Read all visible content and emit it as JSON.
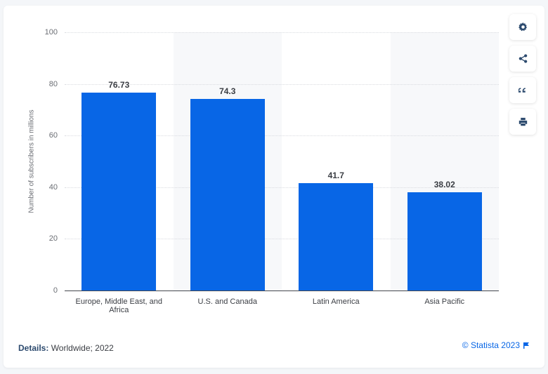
{
  "chart_data": {
    "type": "bar",
    "title": "",
    "xlabel": "",
    "ylabel": "Number of subscribers in millions",
    "ylim": [
      0,
      100
    ],
    "yticks": [
      0,
      20,
      40,
      60,
      80,
      100
    ],
    "grid": true,
    "legend": null,
    "categories": [
      "Europe, Middle East, and Africa",
      "U.S. and Canada",
      "Latin America",
      "Asia Pacific"
    ],
    "values": [
      76.73,
      74.3,
      41.7,
      38.02
    ],
    "value_labels": [
      "76.73",
      "74.3",
      "41.7",
      "38.02"
    ],
    "bar_color": "#0866e6"
  },
  "axis": {
    "ylabel": "Number of subscribers in millions",
    "yticks": [
      "0",
      "20",
      "40",
      "60",
      "80",
      "100"
    ]
  },
  "bars": [
    {
      "category": "Europe, Middle East, and Africa",
      "value": 76.73,
      "label": "76.73"
    },
    {
      "category": "U.S. and Canada",
      "value": 74.3,
      "label": "74.3"
    },
    {
      "category": "Latin America",
      "value": 41.7,
      "label": "41.7"
    },
    {
      "category": "Asia Pacific",
      "value": 38.02,
      "label": "38.02"
    }
  ],
  "toolbar": {
    "settings_icon": "gear-icon",
    "share_icon": "share-icon",
    "cite_icon": "quote-icon",
    "print_icon": "print-icon"
  },
  "footer": {
    "details_label": "Details:",
    "details_value": " Worldwide; 2022",
    "credit": "© Statista 2023",
    "flag_icon": "flag-icon"
  },
  "colors": {
    "bar": "#0866e6",
    "accent_text": "#2c4a6e",
    "link": "#0866e6"
  }
}
